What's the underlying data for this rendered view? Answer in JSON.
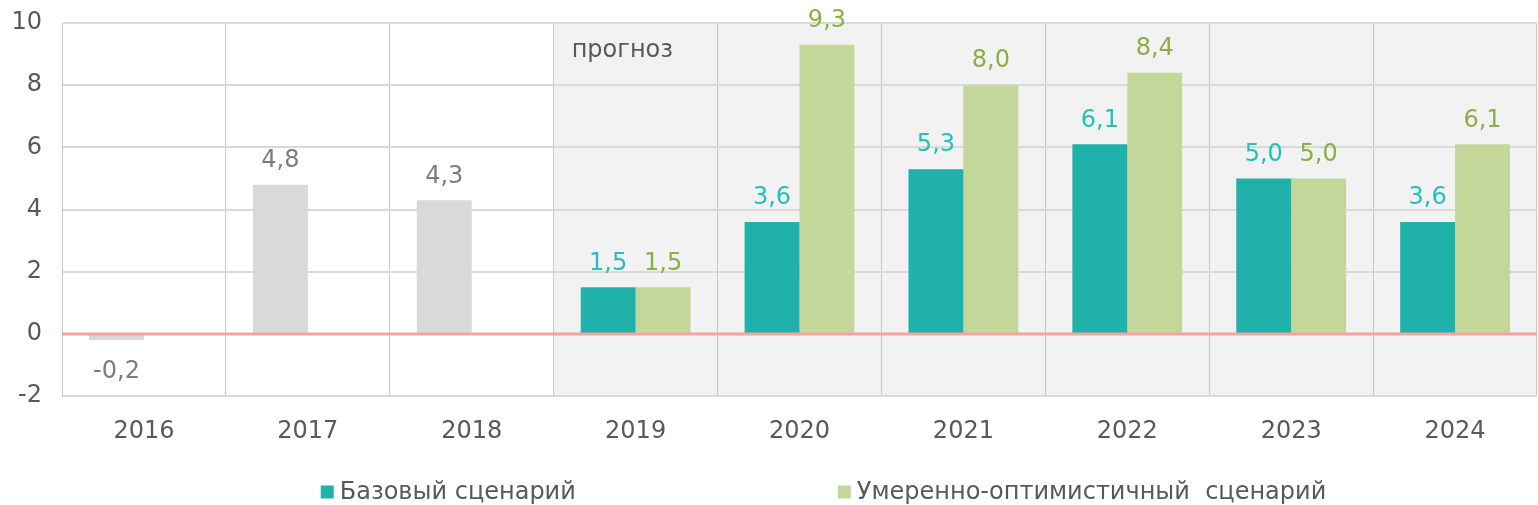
{
  "chart_data": {
    "type": "bar",
    "categories": [
      "2016",
      "2017",
      "2018",
      "2019",
      "2020",
      "2021",
      "2022",
      "2023",
      "2024"
    ],
    "series": [
      {
        "color": "#d9d9d9",
        "values": [
          -0.2,
          4.8,
          4.3,
          null,
          null,
          null,
          null,
          null,
          null
        ],
        "value_labels": [
          "-0,2",
          "4,8",
          "4,3",
          null,
          null,
          null,
          null,
          null,
          null
        ]
      },
      {
        "name": "Базовый сценарий",
        "color": "#20b2aa",
        "values": [
          null,
          null,
          null,
          1.5,
          3.6,
          5.3,
          6.1,
          5.0,
          3.6
        ],
        "value_labels": [
          null,
          null,
          null,
          "1,5",
          "3,6",
          "5,3",
          "6,1",
          "5,0",
          "3,6"
        ]
      },
      {
        "name": "Умеренно-оптимистичный  сценарий",
        "color": "#c4d79b",
        "values": [
          null,
          null,
          null,
          1.5,
          9.3,
          8.0,
          8.4,
          5.0,
          6.1
        ],
        "value_labels": [
          null,
          null,
          null,
          "1,5",
          "9,3",
          "8,0",
          "8,4",
          "5,0",
          "6,1"
        ]
      }
    ],
    "ylim": [
      -2,
      10
    ],
    "yticks": [
      -2,
      0,
      2,
      4,
      6,
      8,
      10
    ],
    "grid": true,
    "legend": "bottom",
    "ref_lines": [
      {
        "axis": "y",
        "value": 0,
        "color": "#f4a3a3"
      }
    ],
    "bands": [
      {
        "axis": "x",
        "from": "2019",
        "to": "2024",
        "label": "прогноз",
        "color": "#f2f2f2"
      }
    ]
  }
}
